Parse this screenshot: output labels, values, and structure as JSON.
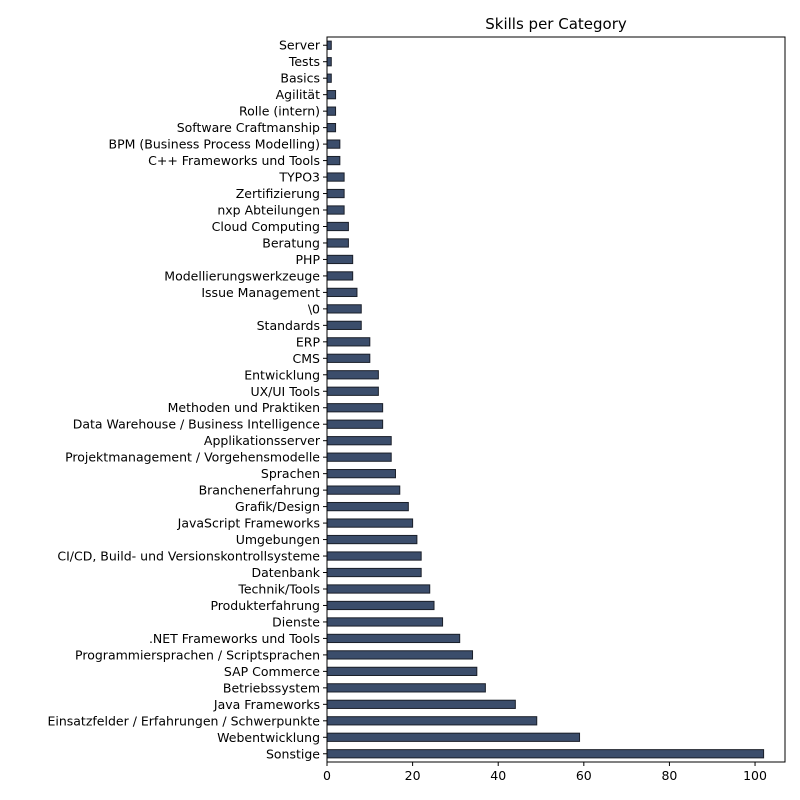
{
  "chart_data": {
    "type": "bar",
    "orientation": "horizontal",
    "title": "Skills per Category",
    "xlabel": "",
    "ylabel": "",
    "xlim": [
      0,
      107
    ],
    "xticks": [
      0,
      20,
      40,
      60,
      80,
      100
    ],
    "grid": false,
    "bar_color": "#3b4d6b",
    "categories": [
      "Sonstige",
      "Webentwicklung",
      "Einsatzfelder / Erfahrungen / Schwerpunkte",
      "Java Frameworks",
      "Betriebssystem",
      "SAP Commerce",
      "Programmiersprachen / Scriptsprachen",
      ".NET Frameworks und Tools",
      "Dienste",
      "Produkterfahrung",
      "Technik/Tools",
      "Datenbank",
      "CI/CD, Build- und Versionskontrollsysteme",
      "Umgebungen",
      "JavaScript Frameworks",
      "Grafik/Design",
      "Branchenerfahrung",
      "Sprachen",
      "Projektmanagement / Vorgehensmodelle",
      "Applikationsserver",
      "Data Warehouse / Business Intelligence",
      "Methoden und Praktiken",
      "UX/UI Tools",
      "Entwicklung",
      "CMS",
      "ERP",
      "Standards",
      "\\0",
      "Issue Management",
      "Modellierungswerkzeuge",
      "PHP",
      "Beratung",
      "Cloud Computing",
      "nxp Abteilungen",
      "Zertifizierung",
      "TYPO3",
      "C++ Frameworks und Tools",
      "BPM (Business Process Modelling)",
      "Software Craftmanship",
      "Rolle (intern)",
      "Agilität",
      "Basics",
      "Tests",
      "Server"
    ],
    "values": [
      102,
      59,
      49,
      44,
      37,
      35,
      34,
      31,
      27,
      25,
      24,
      22,
      22,
      21,
      20,
      19,
      17,
      16,
      15,
      15,
      13,
      13,
      12,
      12,
      10,
      10,
      8,
      8,
      7,
      6,
      6,
      5,
      5,
      4,
      4,
      4,
      3,
      3,
      2,
      2,
      2,
      1,
      1,
      1
    ]
  }
}
